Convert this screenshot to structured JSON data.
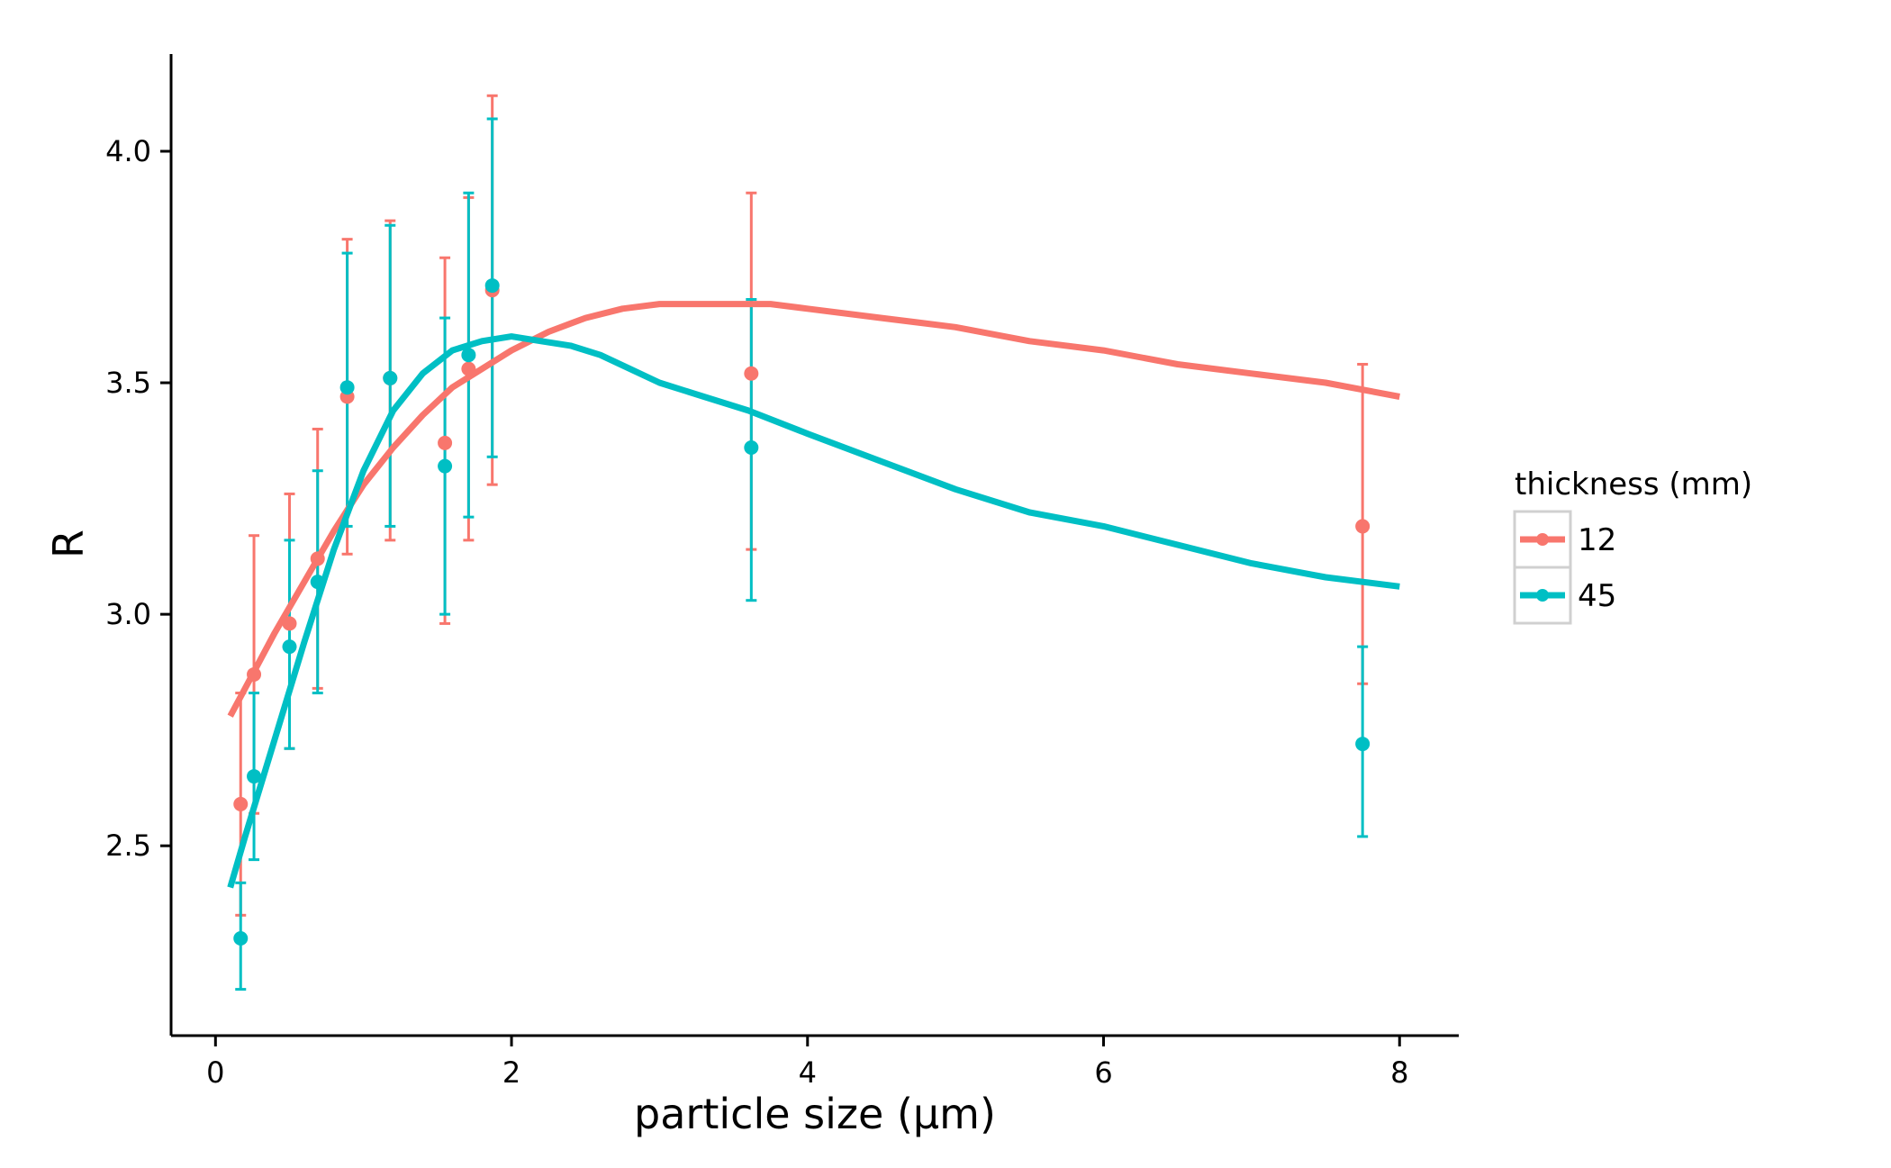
{
  "chart_data": {
    "type": "scatter",
    "xlabel": "particle size (µm)",
    "ylabel": "R",
    "xlim": [
      -0.3,
      8.4
    ],
    "ylim": [
      2.09,
      4.21
    ],
    "x_ticks": [
      0,
      2,
      4,
      6,
      8
    ],
    "x_tick_labels": [
      "0",
      "2",
      "4",
      "6",
      "8"
    ],
    "y_ticks": [
      2.5,
      3.0,
      3.5,
      4.0
    ],
    "y_tick_labels": [
      "2.5",
      "3.0",
      "3.5",
      "4.0"
    ],
    "grid": false,
    "legend": {
      "title": "thickness (mm)",
      "placement": "right"
    },
    "series": [
      {
        "name": "12",
        "color": "#F8766D",
        "points": [
          {
            "x": 0.17,
            "y": 2.59,
            "ymin": 2.35,
            "ymax": 2.83
          },
          {
            "x": 0.26,
            "y": 2.87,
            "ymin": 2.57,
            "ymax": 3.17
          },
          {
            "x": 0.5,
            "y": 2.98,
            "ymin": 2.71,
            "ymax": 3.26
          },
          {
            "x": 0.69,
            "y": 3.12,
            "ymin": 2.84,
            "ymax": 3.4
          },
          {
            "x": 0.89,
            "y": 3.47,
            "ymin": 3.13,
            "ymax": 3.81
          },
          {
            "x": 1.18,
            "y": 3.51,
            "ymin": 3.16,
            "ymax": 3.85
          },
          {
            "x": 1.55,
            "y": 3.37,
            "ymin": 2.98,
            "ymax": 3.77
          },
          {
            "x": 1.71,
            "y": 3.53,
            "ymin": 3.16,
            "ymax": 3.9
          },
          {
            "x": 1.87,
            "y": 3.7,
            "ymin": 3.28,
            "ymax": 4.12
          },
          {
            "x": 3.62,
            "y": 3.52,
            "ymin": 3.14,
            "ymax": 3.91
          },
          {
            "x": 7.75,
            "y": 3.19,
            "ymin": 2.85,
            "ymax": 3.54
          }
        ],
        "fit": {
          "x": [
            0.1,
            0.2,
            0.4,
            0.6,
            0.8,
            1.0,
            1.2,
            1.4,
            1.6,
            1.8,
            2.0,
            2.25,
            2.5,
            2.75,
            3.0,
            3.25,
            3.5,
            3.75,
            4.0,
            4.5,
            5.0,
            5.5,
            6.0,
            6.5,
            7.0,
            7.5,
            8.0
          ],
          "y": [
            2.78,
            2.84,
            2.96,
            3.07,
            3.18,
            3.28,
            3.36,
            3.43,
            3.49,
            3.53,
            3.57,
            3.61,
            3.64,
            3.66,
            3.67,
            3.67,
            3.67,
            3.67,
            3.66,
            3.64,
            3.62,
            3.59,
            3.57,
            3.54,
            3.52,
            3.5,
            3.47
          ]
        }
      },
      {
        "name": "45",
        "color": "#00BFC4",
        "points": [
          {
            "x": 0.17,
            "y": 2.3,
            "ymin": 2.19,
            "ymax": 2.42
          },
          {
            "x": 0.26,
            "y": 2.65,
            "ymin": 2.47,
            "ymax": 2.83
          },
          {
            "x": 0.5,
            "y": 2.93,
            "ymin": 2.71,
            "ymax": 3.16
          },
          {
            "x": 0.69,
            "y": 3.07,
            "ymin": 2.83,
            "ymax": 3.31
          },
          {
            "x": 0.89,
            "y": 3.49,
            "ymin": 3.19,
            "ymax": 3.78
          },
          {
            "x": 1.18,
            "y": 3.51,
            "ymin": 3.19,
            "ymax": 3.84
          },
          {
            "x": 1.55,
            "y": 3.32,
            "ymin": 3.0,
            "ymax": 3.64
          },
          {
            "x": 1.71,
            "y": 3.56,
            "ymin": 3.21,
            "ymax": 3.91
          },
          {
            "x": 1.87,
            "y": 3.71,
            "ymin": 3.34,
            "ymax": 4.07
          },
          {
            "x": 3.62,
            "y": 3.36,
            "ymin": 3.03,
            "ymax": 3.68
          },
          {
            "x": 7.75,
            "y": 2.72,
            "ymin": 2.52,
            "ymax": 2.93
          }
        ],
        "fit": {
          "x": [
            0.1,
            0.2,
            0.4,
            0.6,
            0.8,
            1.0,
            1.2,
            1.4,
            1.6,
            1.8,
            2.0,
            2.2,
            2.4,
            2.6,
            2.8,
            3.0,
            3.3,
            3.6,
            4.0,
            4.5,
            5.0,
            5.5,
            6.0,
            6.5,
            7.0,
            7.5,
            8.0
          ],
          "y": [
            2.41,
            2.52,
            2.73,
            2.94,
            3.14,
            3.31,
            3.44,
            3.52,
            3.57,
            3.59,
            3.6,
            3.59,
            3.58,
            3.56,
            3.53,
            3.5,
            3.47,
            3.44,
            3.39,
            3.33,
            3.27,
            3.22,
            3.19,
            3.15,
            3.11,
            3.08,
            3.06
          ]
        }
      }
    ]
  }
}
